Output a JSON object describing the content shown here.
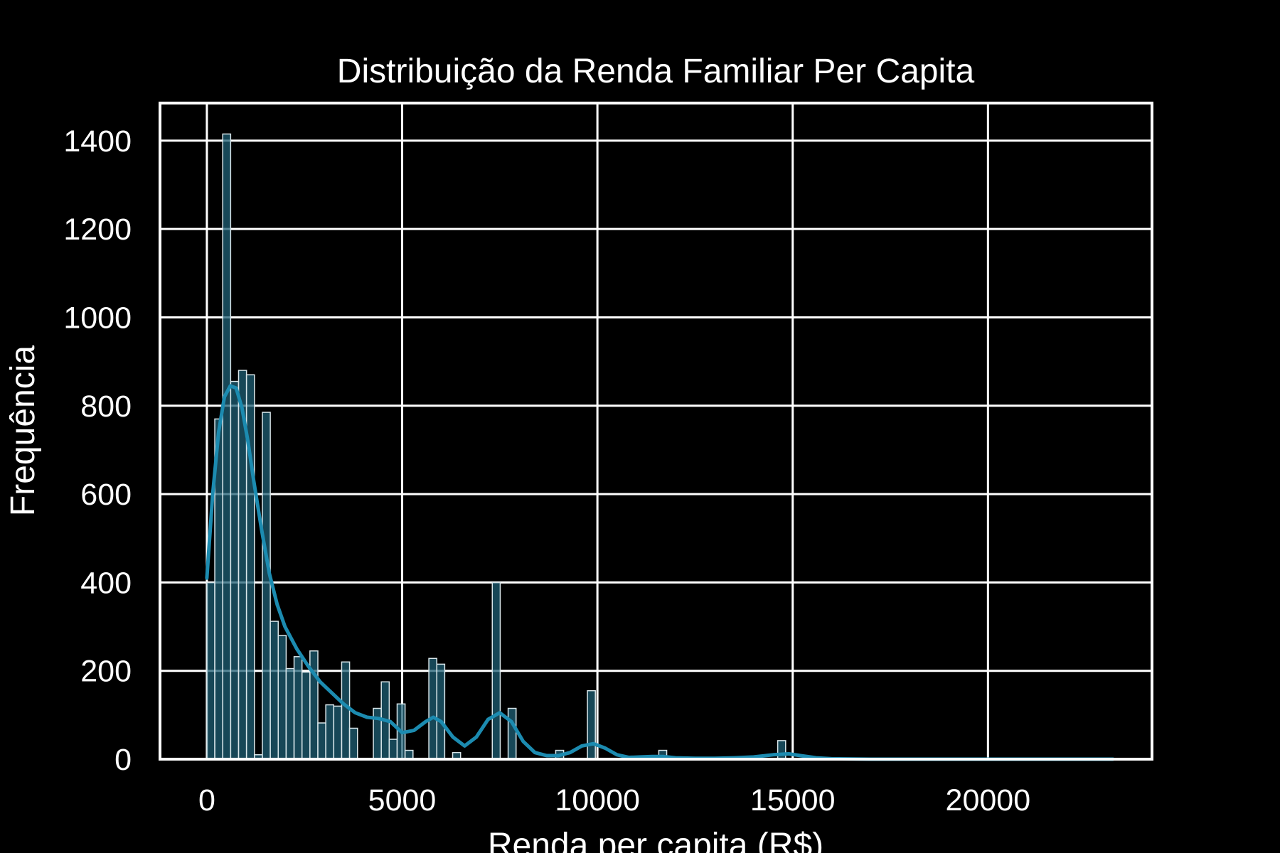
{
  "chart_data": {
    "type": "bar",
    "subtype": "histogram-with-kde",
    "title": "Distribuição da Renda Familiar Per Capita",
    "xlabel": "Renda per capita (R$)",
    "ylabel": "Frequência",
    "xlim": [
      -1200,
      24200
    ],
    "ylim": [
      0,
      1485
    ],
    "xticks": [
      0,
      5000,
      10000,
      15000,
      20000
    ],
    "yticks": [
      0,
      200,
      400,
      600,
      800,
      1000,
      1200,
      1400
    ],
    "grid": true,
    "legend": "none",
    "bin_width": 203,
    "colors": {
      "background": "#000000",
      "bar": "#1f5f74",
      "kde": "#1c8bb0",
      "axes": "#ffffff"
    },
    "bins": [
      {
        "x": 0,
        "count": 400
      },
      {
        "x": 203,
        "count": 770
      },
      {
        "x": 406,
        "count": 1415
      },
      {
        "x": 609,
        "count": 855
      },
      {
        "x": 812,
        "count": 880
      },
      {
        "x": 1015,
        "count": 870
      },
      {
        "x": 1218,
        "count": 10
      },
      {
        "x": 1421,
        "count": 785
      },
      {
        "x": 1624,
        "count": 312
      },
      {
        "x": 1827,
        "count": 280
      },
      {
        "x": 2030,
        "count": 205
      },
      {
        "x": 2233,
        "count": 232
      },
      {
        "x": 2436,
        "count": 197
      },
      {
        "x": 2639,
        "count": 245
      },
      {
        "x": 2842,
        "count": 82
      },
      {
        "x": 3045,
        "count": 123
      },
      {
        "x": 3248,
        "count": 120
      },
      {
        "x": 3451,
        "count": 220
      },
      {
        "x": 3654,
        "count": 70
      },
      {
        "x": 4263,
        "count": 115
      },
      {
        "x": 4466,
        "count": 175
      },
      {
        "x": 4669,
        "count": 45
      },
      {
        "x": 4872,
        "count": 125
      },
      {
        "x": 5075,
        "count": 20
      },
      {
        "x": 5684,
        "count": 228
      },
      {
        "x": 5887,
        "count": 215
      },
      {
        "x": 6293,
        "count": 15
      },
      {
        "x": 7308,
        "count": 400
      },
      {
        "x": 7714,
        "count": 115
      },
      {
        "x": 8932,
        "count": 20
      },
      {
        "x": 9744,
        "count": 155
      },
      {
        "x": 11571,
        "count": 20
      },
      {
        "x": 14616,
        "count": 42
      }
    ],
    "kde": {
      "x": [
        0,
        150,
        300,
        450,
        600,
        750,
        900,
        1050,
        1200,
        1400,
        1600,
        1800,
        2000,
        2300,
        2600,
        2900,
        3200,
        3500,
        3800,
        4100,
        4400,
        4700,
        5000,
        5300,
        5600,
        5800,
        6000,
        6300,
        6600,
        6900,
        7200,
        7500,
        7800,
        8100,
        8400,
        8700,
        9000,
        9300,
        9600,
        9900,
        10200,
        10500,
        10800,
        11100,
        11400,
        11700,
        12000,
        12500,
        13000,
        13500,
        14000,
        14500,
        14900,
        15200,
        15600,
        16000,
        17000,
        18000,
        20000,
        22000,
        23200
      ],
      "y": [
        410,
        600,
        740,
        820,
        845,
        840,
        795,
        720,
        630,
        520,
        420,
        350,
        300,
        250,
        210,
        175,
        150,
        125,
        105,
        95,
        92,
        85,
        60,
        65,
        85,
        95,
        85,
        50,
        30,
        50,
        90,
        105,
        85,
        40,
        15,
        8,
        8,
        15,
        30,
        35,
        25,
        10,
        4,
        5,
        6,
        6,
        3,
        2,
        2,
        3,
        5,
        10,
        12,
        8,
        3,
        1,
        0,
        0,
        0,
        0,
        0
      ]
    }
  }
}
